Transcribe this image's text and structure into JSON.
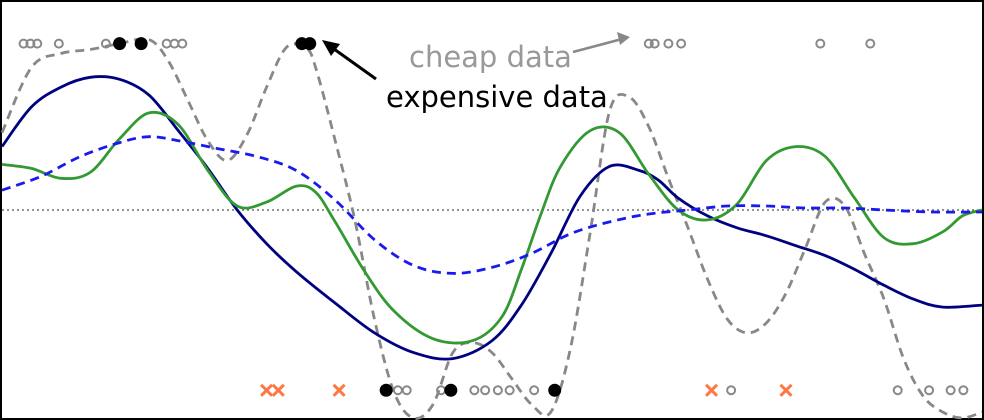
{
  "chart_data": {
    "type": "line",
    "title": "",
    "xlabel": "",
    "ylabel": "",
    "xlim": [
      0,
      100
    ],
    "ylim": [
      -1.05,
      1.05
    ],
    "baseline": 0,
    "grid": false,
    "legend": "none",
    "series": [
      {
        "style": "dashed",
        "color": "#888888",
        "x": [
          0,
          3,
          6,
          9,
          12,
          15,
          17,
          19,
          21,
          23,
          25,
          27,
          29,
          31,
          32,
          34,
          36,
          38,
          40,
          42,
          44,
          46,
          48,
          50,
          52,
          54,
          56,
          58,
          60,
          62,
          64,
          66,
          68,
          70,
          72,
          74,
          76,
          78,
          80,
          82,
          84,
          86,
          88,
          90,
          92,
          94,
          96,
          98,
          100
        ],
        "y": [
          0.39,
          0.72,
          0.79,
          0.81,
          0.84,
          0.86,
          0.75,
          0.55,
          0.35,
          0.25,
          0.38,
          0.62,
          0.82,
          0.82,
          0.72,
          0.35,
          -0.05,
          -0.55,
          -0.92,
          -1.05,
          -0.98,
          -0.72,
          -0.67,
          -0.72,
          -0.85,
          -0.98,
          -1.02,
          -0.7,
          -0.12,
          0.5,
          0.57,
          0.42,
          0.16,
          -0.09,
          -0.35,
          -0.55,
          -0.62,
          -0.57,
          -0.42,
          -0.19,
          0.04,
          0.02,
          -0.22,
          -0.45,
          -0.75,
          -0.94,
          -1.02,
          -1.05,
          -1.02
        ]
      },
      {
        "style": "solid",
        "color": "#000080",
        "x": [
          0,
          3,
          6,
          9,
          12,
          15,
          18,
          21,
          24,
          27,
          30,
          34,
          38,
          42,
          46,
          50,
          53,
          56,
          59,
          62,
          65,
          67,
          69,
          72,
          75,
          78,
          81,
          84,
          87,
          90,
          93,
          96,
          100
        ],
        "y": [
          0.32,
          0.52,
          0.62,
          0.67,
          0.66,
          0.58,
          0.4,
          0.21,
          0.0,
          -0.17,
          -0.31,
          -0.47,
          -0.62,
          -0.72,
          -0.75,
          -0.66,
          -0.48,
          -0.22,
          0.07,
          0.22,
          0.2,
          0.15,
          0.06,
          -0.03,
          -0.09,
          -0.13,
          -0.18,
          -0.23,
          -0.3,
          -0.38,
          -0.45,
          -0.49,
          -0.48
        ]
      },
      {
        "style": "solid",
        "color": "#339933",
        "x": [
          0,
          3,
          6,
          9,
          12,
          15,
          18,
          21,
          24,
          27,
          30,
          32,
          34,
          37,
          40,
          44,
          48,
          51,
          53,
          55,
          57,
          60,
          63,
          66,
          69,
          72,
          75,
          78,
          81,
          84,
          87,
          90,
          93,
          96,
          98,
          100
        ],
        "y": [
          0.23,
          0.21,
          0.16,
          0.19,
          0.36,
          0.49,
          0.43,
          0.2,
          0.02,
          0.04,
          0.12,
          0.09,
          -0.06,
          -0.31,
          -0.51,
          -0.65,
          -0.66,
          -0.54,
          -0.3,
          -0.02,
          0.22,
          0.4,
          0.39,
          0.18,
          0.0,
          -0.05,
          0.03,
          0.25,
          0.32,
          0.27,
          0.06,
          -0.14,
          -0.17,
          -0.11,
          -0.03,
          0.0
        ]
      },
      {
        "style": "dashed",
        "color": "#1a1aee",
        "x": [
          0,
          4,
          8,
          12,
          15,
          18,
          22,
          26,
          30,
          34,
          38,
          42,
          46,
          50,
          54,
          58,
          62,
          66,
          70,
          74,
          78,
          82,
          86,
          90,
          95,
          100
        ],
        "y": [
          0.1,
          0.17,
          0.27,
          0.34,
          0.37,
          0.35,
          0.31,
          0.27,
          0.2,
          0.05,
          -0.15,
          -0.28,
          -0.32,
          -0.29,
          -0.22,
          -0.12,
          -0.06,
          -0.02,
          0.0,
          0.02,
          0.02,
          0.01,
          0.01,
          0.0,
          -0.01,
          -0.01
        ]
      }
    ],
    "expensive_data": {
      "color": "#000000",
      "x": [
        12.0,
        14.2,
        30.6,
        31.4,
        39.2,
        45.8,
        56.4
      ],
      "y": [
        0.84,
        0.84,
        0.84,
        0.84,
        -0.91,
        -0.91,
        -0.91
      ]
    },
    "cheap_data": {
      "color": "#888888",
      "x": [
        2.2,
        2.9,
        3.6,
        5.8,
        10.6,
        16.8,
        17.6,
        18.4,
        66.0,
        66.6,
        68.0,
        69.3,
        83.5,
        88.6,
        40.4,
        41.3,
        44.8,
        48.2,
        49.3,
        50.6,
        51.8,
        54.3,
        74.4,
        91.4,
        94.6,
        96.8,
        98.1
      ],
      "y": [
        0.84,
        0.84,
        0.84,
        0.84,
        0.84,
        0.84,
        0.84,
        0.84,
        0.84,
        0.84,
        0.84,
        0.84,
        0.84,
        0.84,
        -0.91,
        -0.91,
        -0.91,
        -0.91,
        -0.91,
        -0.91,
        -0.91,
        -0.91,
        -0.91,
        -0.91,
        -0.91,
        -0.91,
        -0.91
      ]
    },
    "test_points": {
      "color": "#ff7744",
      "x": [
        27.0,
        28.2,
        34.4,
        72.4,
        80.0
      ],
      "y": [
        -0.91,
        -0.91,
        -0.91,
        -0.91,
        -0.91
      ]
    },
    "annotations": {
      "cheap": {
        "text": "cheap data",
        "color": "#999999"
      },
      "expensive": {
        "text": "expensive data",
        "color": "#000000"
      }
    }
  }
}
